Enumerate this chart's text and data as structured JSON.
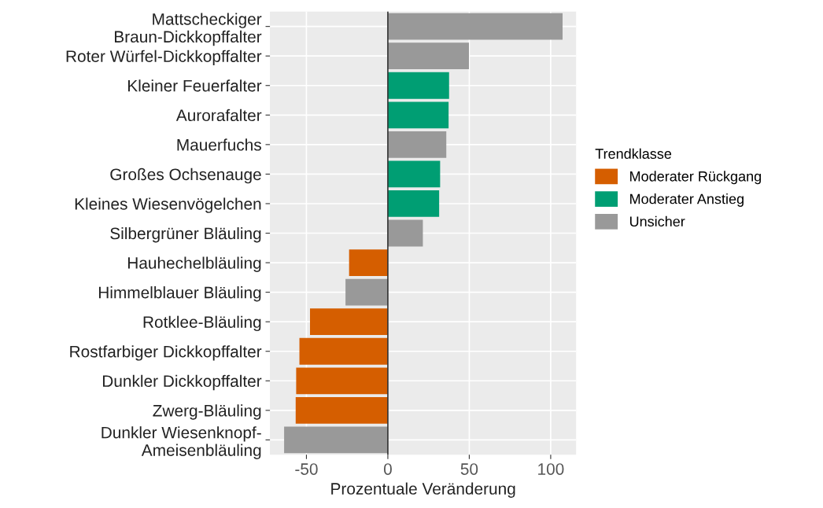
{
  "chart_data": {
    "type": "bar",
    "orientation": "horizontal",
    "xlabel": "Prozentuale Veränderung",
    "legend_title": "Trendklasse",
    "legend": "right",
    "grid": true,
    "categories": [
      "Mattscheckiger\nBraun-Dickkopffalter",
      "Roter Würfel-Dickkopffalter",
      "Kleiner Feuerfalter",
      "Aurorafalter",
      "Mauerfuchs",
      "Großes Ochsenauge",
      "Kleines Wiesenvögelchen",
      "Silbergrüner Bläuling",
      "Hauhechelbläuling",
      "Himmelblauer Bläuling",
      "Rotklee-Bläuling",
      "Rostfarbiger Dickkopffalter",
      "Dunkler Dickkopffalter",
      "Zwerg-Bläuling",
      "Dunkler Wiesenknopf-\nAmeisenbläuling"
    ],
    "series": [
      {
        "name": "Moderater Rückgang",
        "color": "#d55e00",
        "values": [
          null,
          null,
          null,
          null,
          null,
          null,
          null,
          null,
          -23.8,
          null,
          -47.8,
          -54.3,
          -56.3,
          -56.6,
          null
        ]
      },
      {
        "name": "Moderater Anstieg",
        "color": "#009e73",
        "values": [
          null,
          null,
          37.6,
          37.3,
          null,
          32.1,
          31.5,
          null,
          null,
          null,
          null,
          null,
          null,
          null,
          null
        ]
      },
      {
        "name": "Unsicher",
        "color": "#999999",
        "values": [
          107.3,
          49.8,
          null,
          null,
          35.9,
          null,
          null,
          21.5,
          null,
          -26.0,
          null,
          null,
          null,
          null,
          -63.7
        ]
      }
    ],
    "xlim": [
      -72.4,
      115.6
    ],
    "xticks": [
      -50,
      0,
      50,
      100
    ],
    "ref_lines": [
      {
        "axis": "x",
        "value": 0,
        "color": "#333333"
      }
    ]
  }
}
